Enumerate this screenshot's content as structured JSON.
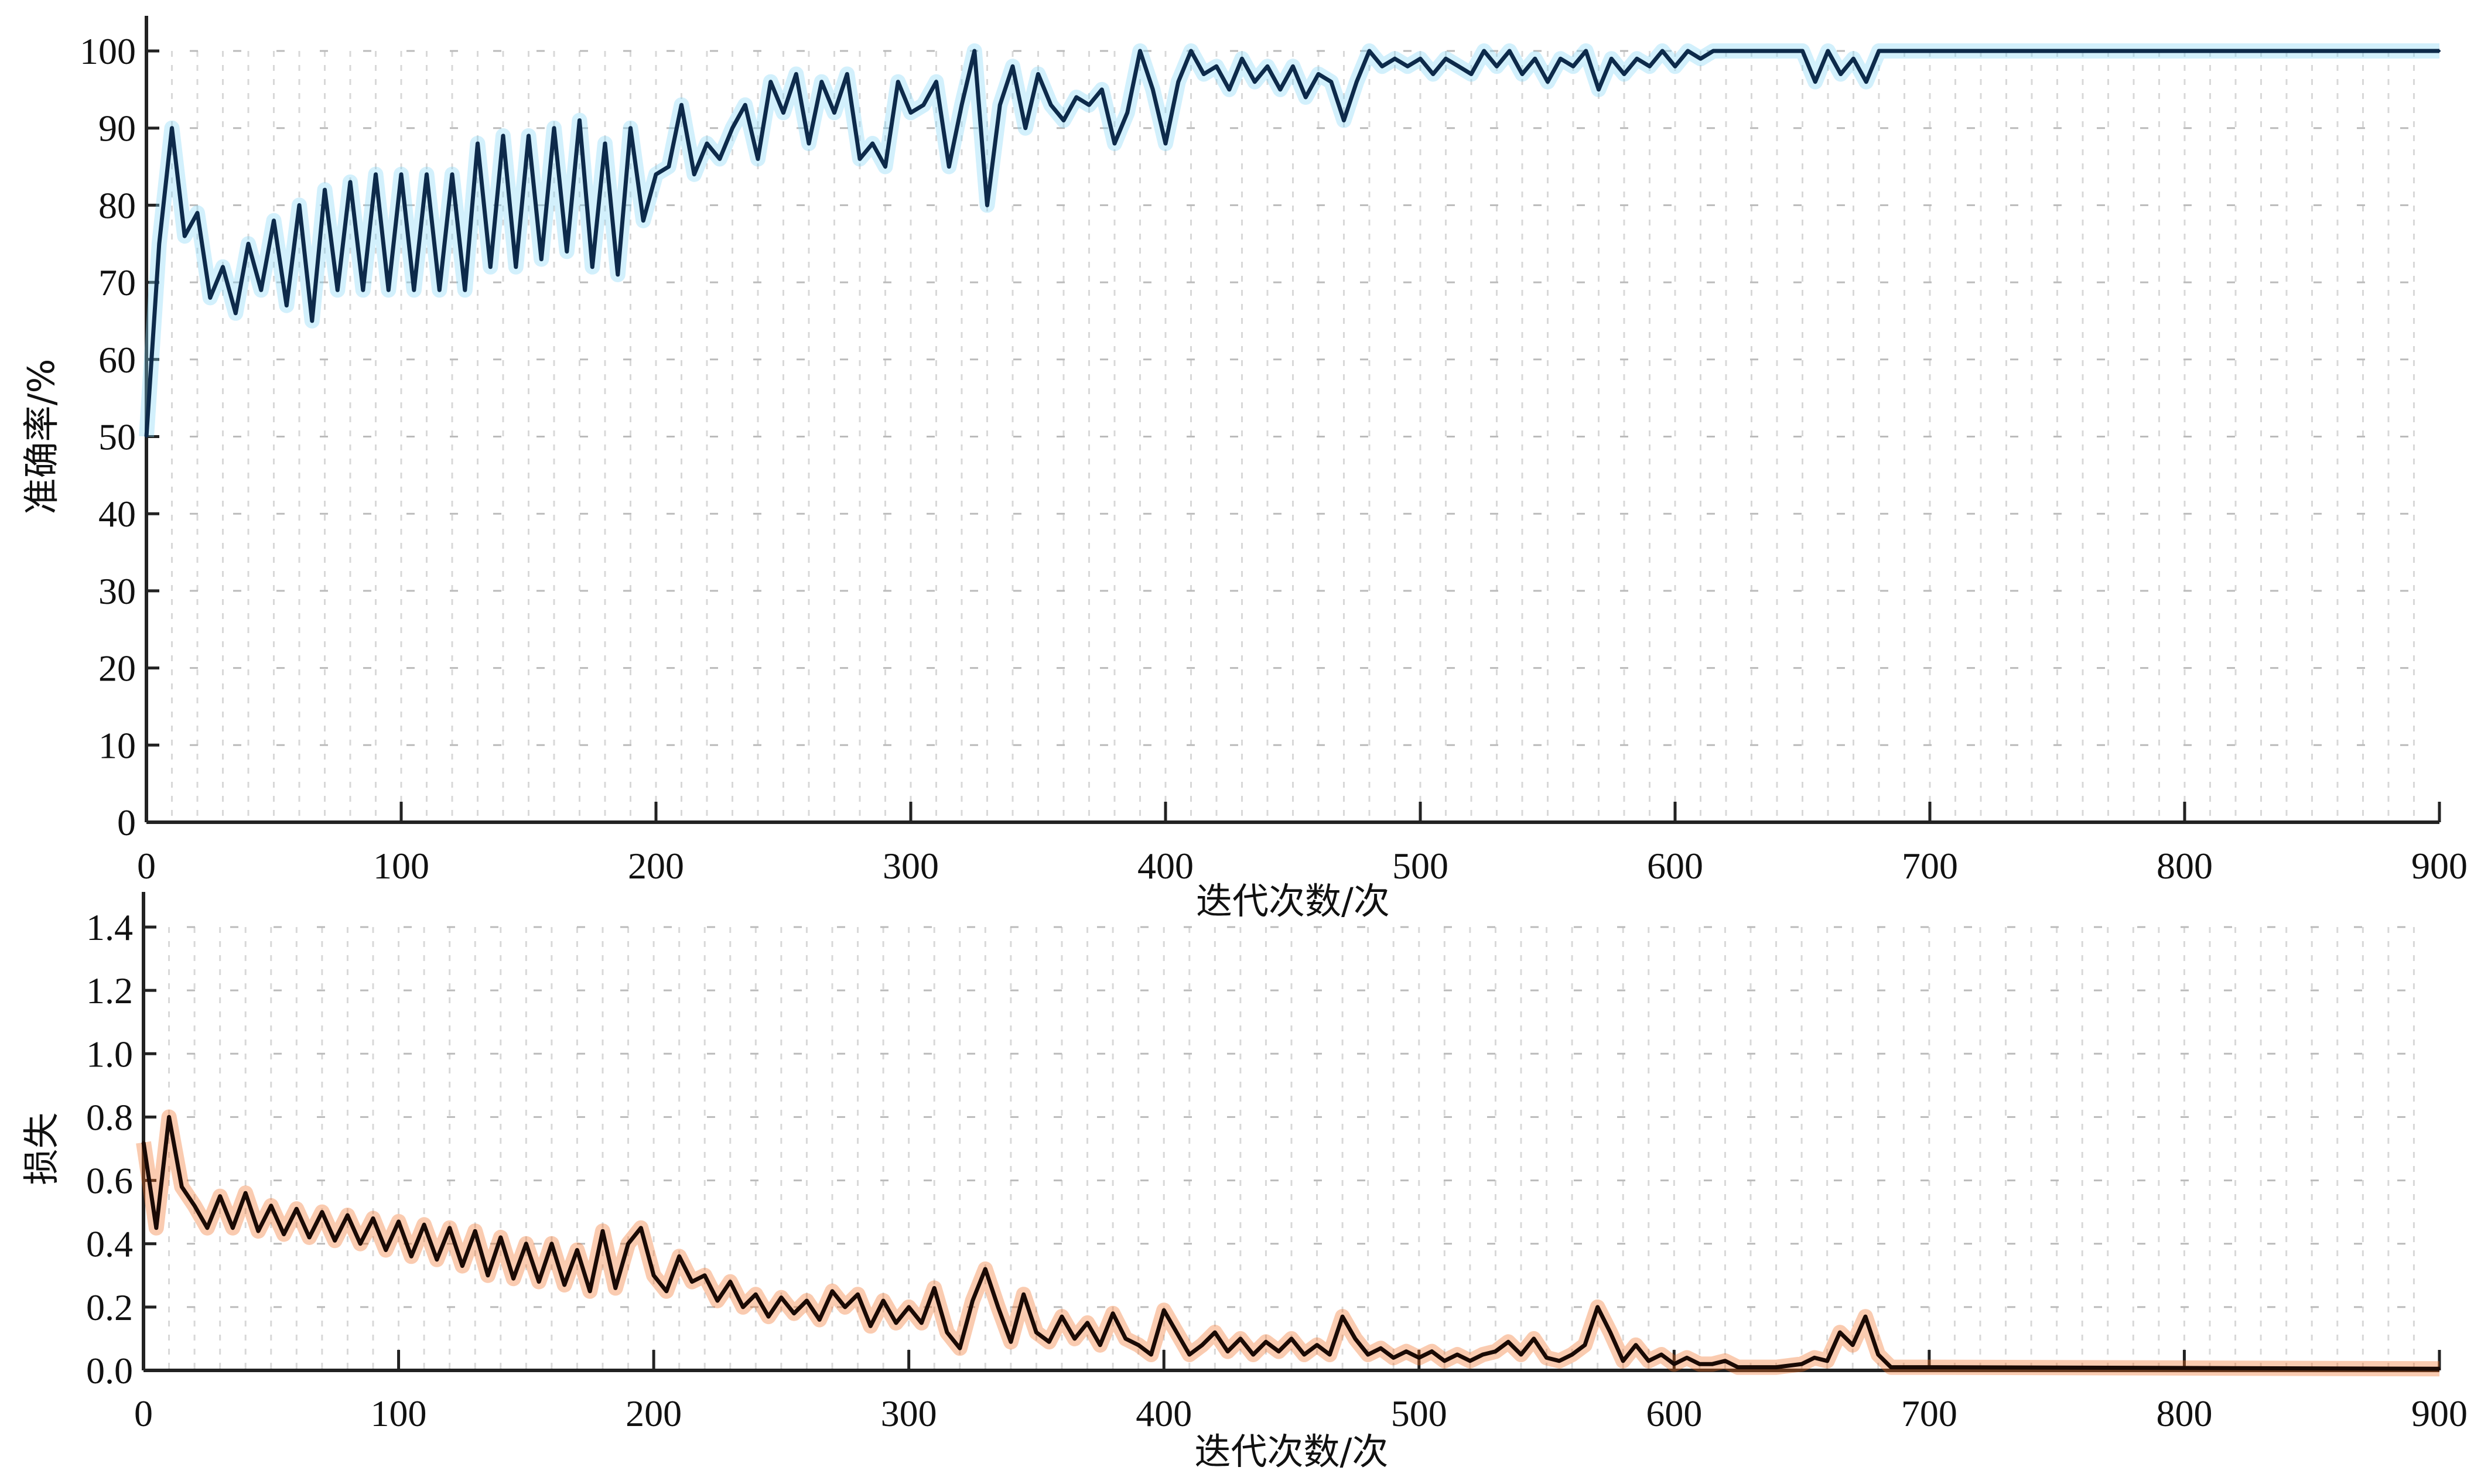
{
  "chart_data": [
    {
      "type": "line",
      "title": "",
      "xlabel": "迭代次数/次",
      "ylabel": "准确率/%",
      "xlim": [
        0,
        900
      ],
      "ylim": [
        0,
        100
      ],
      "xticks": [
        "0",
        "100",
        "200",
        "300",
        "400",
        "500",
        "600",
        "700",
        "800",
        "900"
      ],
      "yticks": [
        "0",
        "10",
        "20",
        "30",
        "40",
        "50",
        "60",
        "70",
        "80",
        "90",
        "100"
      ],
      "grid": "faint dashed",
      "colors": {
        "line": "#0d2a4a",
        "band": "#7fd3f5"
      },
      "series": [
        {
          "x": [
            0,
            5,
            10,
            15,
            20,
            25,
            30,
            35,
            40,
            45,
            50,
            55,
            60,
            65,
            70,
            75,
            80,
            85,
            90,
            95,
            100,
            105,
            110,
            115,
            120,
            125,
            130,
            135,
            140,
            145,
            150,
            155,
            160,
            165,
            170,
            175,
            180,
            185,
            190,
            195,
            200,
            205,
            210,
            215,
            220,
            225,
            230,
            235,
            240,
            245,
            250,
            255,
            260,
            265,
            270,
            275,
            280,
            285,
            290,
            295,
            300,
            305,
            310,
            315,
            320,
            325,
            330,
            335,
            340,
            345,
            350,
            355,
            360,
            365,
            370,
            375,
            380,
            385,
            390,
            395,
            400,
            405,
            410,
            415,
            420,
            425,
            430,
            435,
            440,
            445,
            450,
            455,
            460,
            465,
            470,
            475,
            480,
            485,
            490,
            495,
            500,
            505,
            510,
            515,
            520,
            525,
            530,
            535,
            540,
            545,
            550,
            555,
            560,
            565,
            570,
            575,
            580,
            585,
            590,
            595,
            600,
            605,
            610,
            615,
            620,
            630,
            650,
            655,
            660,
            665,
            670,
            675,
            680,
            900
          ],
          "y": [
            50,
            75,
            90,
            76,
            79,
            68,
            72,
            66,
            75,
            69,
            78,
            67,
            80,
            65,
            82,
            69,
            83,
            69,
            84,
            69,
            84,
            69,
            84,
            69,
            84,
            69,
            88,
            72,
            89,
            72,
            89,
            73,
            90,
            74,
            91,
            72,
            88,
            71,
            90,
            78,
            84,
            85,
            93,
            84,
            88,
            86,
            90,
            93,
            86,
            96,
            92,
            97,
            88,
            96,
            92,
            97,
            86,
            88,
            85,
            96,
            92,
            93,
            96,
            85,
            93,
            100,
            80,
            93,
            98,
            90,
            97,
            93,
            91,
            94,
            93,
            95,
            88,
            92,
            100,
            95,
            88,
            96,
            100,
            97,
            98,
            95,
            99,
            96,
            98,
            95,
            98,
            94,
            97,
            96,
            91,
            96,
            100,
            98,
            99,
            98,
            99,
            97,
            99,
            98,
            97,
            100,
            98,
            100,
            97,
            99,
            96,
            99,
            98,
            100,
            95,
            99,
            97,
            99,
            98,
            100,
            98,
            100,
            99,
            100,
            100,
            100,
            100,
            96,
            100,
            97,
            99,
            96,
            100,
            100
          ]
        }
      ]
    },
    {
      "type": "line",
      "title": "",
      "xlabel": "迭代次数/次",
      "ylabel": "损失",
      "xlim": [
        0,
        900
      ],
      "ylim": [
        0,
        1.4
      ],
      "xticks": [
        "0",
        "100",
        "200",
        "300",
        "400",
        "500",
        "600",
        "700",
        "800",
        "900"
      ],
      "yticks": [
        "0.0",
        "0.2",
        "0.4",
        "0.6",
        "0.8",
        "1.0",
        "1.2",
        "1.4"
      ],
      "grid": "faint dashed",
      "colors": {
        "line": "#1a0a05",
        "band": "#f26b1d"
      },
      "series": [
        {
          "x": [
            0,
            5,
            10,
            15,
            20,
            25,
            30,
            35,
            40,
            45,
            50,
            55,
            60,
            65,
            70,
            75,
            80,
            85,
            90,
            95,
            100,
            105,
            110,
            115,
            120,
            125,
            130,
            135,
            140,
            145,
            150,
            155,
            160,
            165,
            170,
            175,
            180,
            185,
            190,
            195,
            200,
            205,
            210,
            215,
            220,
            225,
            230,
            235,
            240,
            245,
            250,
            255,
            260,
            265,
            270,
            275,
            280,
            285,
            290,
            295,
            300,
            305,
            310,
            315,
            320,
            325,
            330,
            335,
            340,
            345,
            350,
            355,
            360,
            365,
            370,
            375,
            380,
            385,
            390,
            395,
            400,
            405,
            410,
            415,
            420,
            425,
            430,
            435,
            440,
            445,
            450,
            455,
            460,
            465,
            470,
            475,
            480,
            485,
            490,
            495,
            500,
            505,
            510,
            515,
            520,
            525,
            530,
            535,
            540,
            545,
            550,
            555,
            560,
            565,
            570,
            575,
            580,
            585,
            590,
            595,
            600,
            605,
            610,
            615,
            620,
            625,
            630,
            640,
            650,
            655,
            660,
            665,
            670,
            675,
            680,
            685,
            690,
            700,
            900
          ],
          "y": [
            0.72,
            0.45,
            0.8,
            0.58,
            0.52,
            0.45,
            0.55,
            0.45,
            0.56,
            0.44,
            0.52,
            0.43,
            0.51,
            0.42,
            0.5,
            0.41,
            0.49,
            0.4,
            0.48,
            0.38,
            0.47,
            0.36,
            0.46,
            0.35,
            0.45,
            0.33,
            0.44,
            0.3,
            0.42,
            0.29,
            0.4,
            0.28,
            0.4,
            0.27,
            0.38,
            0.25,
            0.44,
            0.26,
            0.4,
            0.45,
            0.3,
            0.25,
            0.36,
            0.28,
            0.3,
            0.22,
            0.28,
            0.2,
            0.24,
            0.17,
            0.23,
            0.18,
            0.22,
            0.16,
            0.25,
            0.2,
            0.24,
            0.14,
            0.22,
            0.15,
            0.2,
            0.15,
            0.26,
            0.12,
            0.07,
            0.22,
            0.32,
            0.2,
            0.09,
            0.24,
            0.12,
            0.09,
            0.17,
            0.1,
            0.15,
            0.08,
            0.18,
            0.1,
            0.08,
            0.05,
            0.19,
            0.12,
            0.05,
            0.08,
            0.12,
            0.06,
            0.1,
            0.05,
            0.09,
            0.06,
            0.1,
            0.05,
            0.08,
            0.05,
            0.17,
            0.1,
            0.05,
            0.07,
            0.04,
            0.06,
            0.04,
            0.06,
            0.03,
            0.05,
            0.03,
            0.05,
            0.06,
            0.09,
            0.05,
            0.1,
            0.04,
            0.03,
            0.05,
            0.08,
            0.2,
            0.12,
            0.03,
            0.08,
            0.03,
            0.05,
            0.02,
            0.04,
            0.02,
            0.02,
            0.03,
            0.01,
            0.01,
            0.01,
            0.02,
            0.04,
            0.03,
            0.12,
            0.08,
            0.17,
            0.05,
            0.01,
            0.01,
            0.01,
            0.005
          ]
        }
      ]
    }
  ]
}
